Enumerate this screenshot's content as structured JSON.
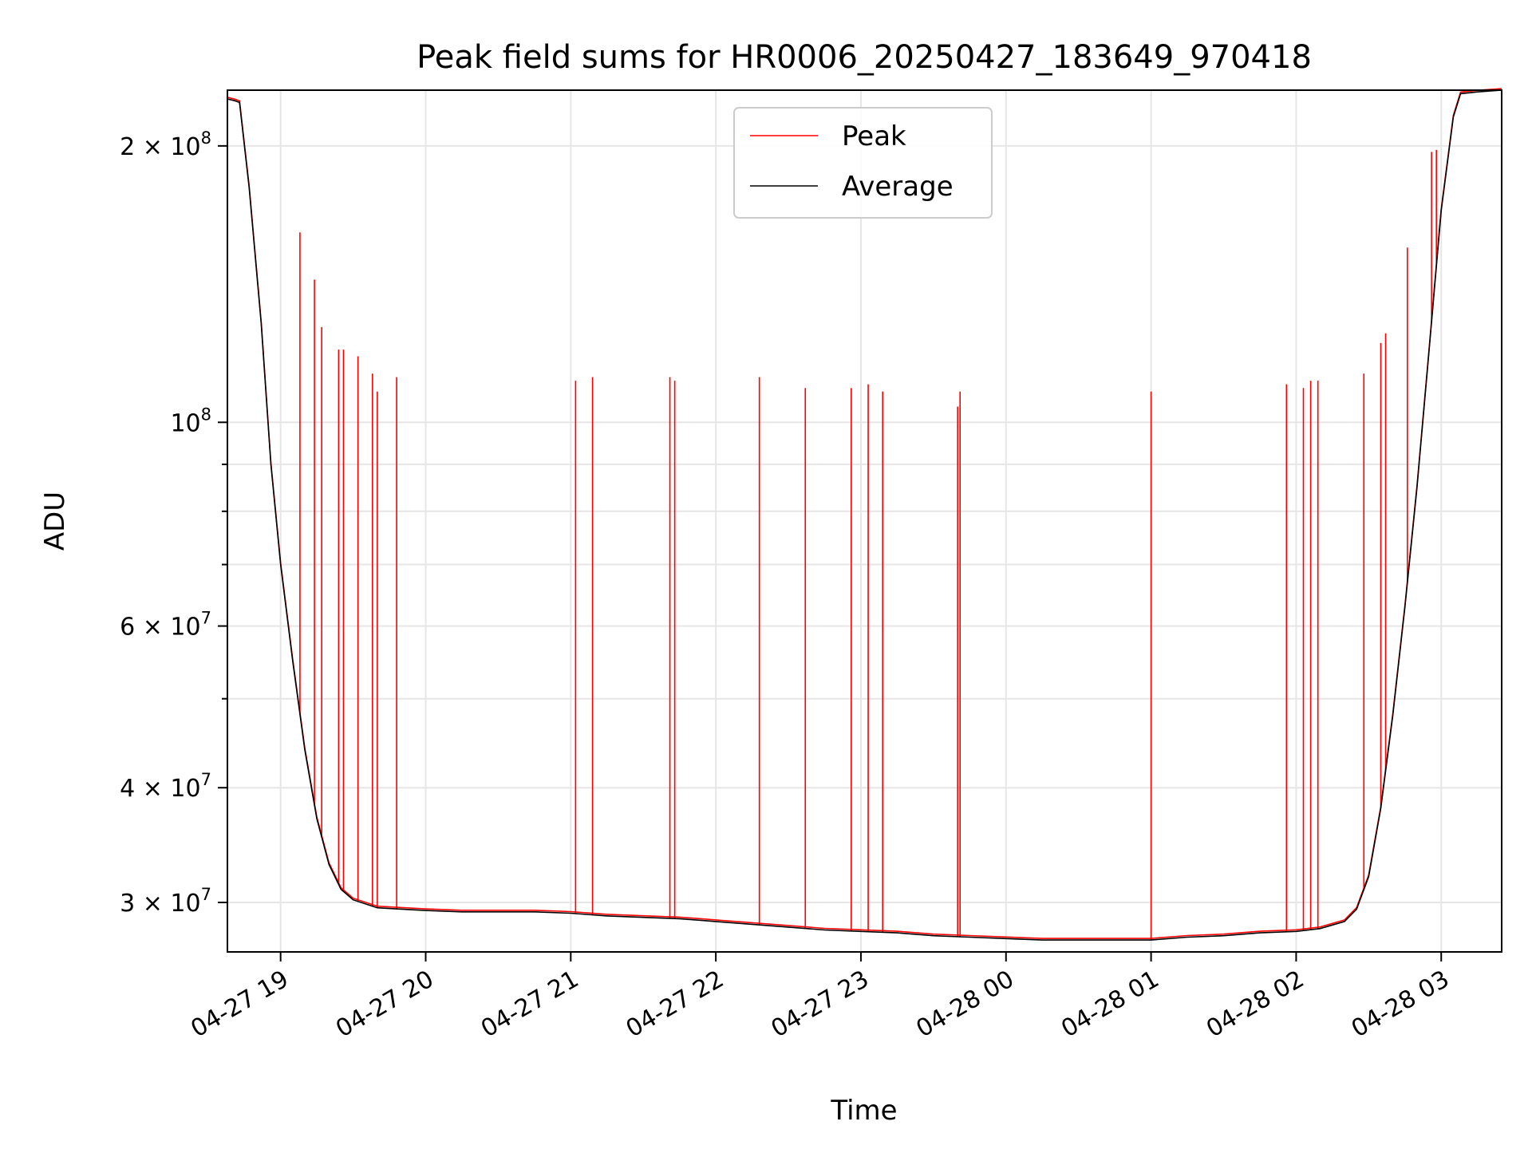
{
  "chart_data": {
    "type": "line",
    "title": "Peak field sums for HR0006_20250427_183649_970418",
    "xlabel": "Time",
    "ylabel": "ADU",
    "y_scale": "log",
    "ylim": [
      26500000,
      230000000
    ],
    "xlim": [
      "2025-04-27 18:38",
      "2025-04-28 03:25"
    ],
    "grid": true,
    "legend_position": "upper center",
    "x_ticks": [
      {
        "t": "2025-04-27 19:00",
        "label": "04-27 19"
      },
      {
        "t": "2025-04-27 20:00",
        "label": "04-27 20"
      },
      {
        "t": "2025-04-27 21:00",
        "label": "04-27 21"
      },
      {
        "t": "2025-04-27 22:00",
        "label": "04-27 22"
      },
      {
        "t": "2025-04-27 23:00",
        "label": "04-27 23"
      },
      {
        "t": "2025-04-28 00:00",
        "label": "04-28 00"
      },
      {
        "t": "2025-04-28 01:00",
        "label": "04-28 01"
      },
      {
        "t": "2025-04-28 02:00",
        "label": "04-28 02"
      },
      {
        "t": "2025-04-28 03:00",
        "label": "04-28 03"
      }
    ],
    "y_major_ticks": [
      {
        "v": 30000000,
        "mant": "3",
        "exp": "7"
      },
      {
        "v": 40000000,
        "mant": "4",
        "exp": "7"
      },
      {
        "v": 60000000,
        "mant": "6",
        "exp": "7"
      },
      {
        "v": 100000000,
        "mant": "",
        "exp": "8"
      },
      {
        "v": 200000000,
        "mant": "2",
        "exp": "8"
      }
    ],
    "y_minor_ticks": [
      50000000,
      70000000,
      80000000,
      90000000
    ],
    "series": [
      {
        "name": "Average",
        "color": "#000000",
        "points": [
          [
            "2025-04-27 18:38",
            225000000
          ],
          [
            "2025-04-27 18:41",
            224000000
          ],
          [
            "2025-04-27 18:43",
            223000000
          ],
          [
            "2025-04-27 18:47",
            180000000
          ],
          [
            "2025-04-27 18:52",
            128000000
          ],
          [
            "2025-04-27 18:56",
            90000000
          ],
          [
            "2025-04-27 19:00",
            70000000
          ],
          [
            "2025-04-27 19:05",
            55000000
          ],
          [
            "2025-04-27 19:10",
            44000000
          ],
          [
            "2025-04-27 19:15",
            37000000
          ],
          [
            "2025-04-27 19:20",
            33000000
          ],
          [
            "2025-04-27 19:25",
            31000000
          ],
          [
            "2025-04-27 19:30",
            30200000
          ],
          [
            "2025-04-27 19:40",
            29600000
          ],
          [
            "2025-04-27 19:50",
            29500000
          ],
          [
            "2025-04-27 20:00",
            29400000
          ],
          [
            "2025-04-27 20:15",
            29300000
          ],
          [
            "2025-04-27 20:30",
            29300000
          ],
          [
            "2025-04-27 20:45",
            29300000
          ],
          [
            "2025-04-27 21:00",
            29200000
          ],
          [
            "2025-04-27 21:15",
            29000000
          ],
          [
            "2025-04-27 21:30",
            28900000
          ],
          [
            "2025-04-27 21:45",
            28800000
          ],
          [
            "2025-04-27 22:00",
            28600000
          ],
          [
            "2025-04-27 22:15",
            28400000
          ],
          [
            "2025-04-27 22:30",
            28200000
          ],
          [
            "2025-04-27 22:45",
            28000000
          ],
          [
            "2025-04-27 23:00",
            27900000
          ],
          [
            "2025-04-27 23:15",
            27800000
          ],
          [
            "2025-04-27 23:30",
            27600000
          ],
          [
            "2025-04-27 23:45",
            27500000
          ],
          [
            "2025-04-28 00:00",
            27400000
          ],
          [
            "2025-04-28 00:15",
            27300000
          ],
          [
            "2025-04-28 00:30",
            27300000
          ],
          [
            "2025-04-28 00:45",
            27300000
          ],
          [
            "2025-04-28 01:00",
            27300000
          ],
          [
            "2025-04-28 01:15",
            27500000
          ],
          [
            "2025-04-28 01:30",
            27600000
          ],
          [
            "2025-04-28 01:45",
            27800000
          ],
          [
            "2025-04-28 02:00",
            27900000
          ],
          [
            "2025-04-28 02:10",
            28100000
          ],
          [
            "2025-04-28 02:20",
            28600000
          ],
          [
            "2025-04-28 02:25",
            29500000
          ],
          [
            "2025-04-28 02:30",
            32000000
          ],
          [
            "2025-04-28 02:35",
            38000000
          ],
          [
            "2025-04-28 02:40",
            48000000
          ],
          [
            "2025-04-28 02:45",
            63000000
          ],
          [
            "2025-04-28 02:50",
            85000000
          ],
          [
            "2025-04-28 02:55",
            120000000
          ],
          [
            "2025-04-28 03:00",
            170000000
          ],
          [
            "2025-04-28 03:05",
            215000000
          ],
          [
            "2025-04-28 03:08",
            228000000
          ],
          [
            "2025-04-28 03:15",
            229000000
          ],
          [
            "2025-04-28 03:25",
            230000000
          ]
        ]
      },
      {
        "name": "Peak",
        "color": "#ff0000",
        "spikes": [
          [
            "2025-04-27 19:08",
            161000000
          ],
          [
            "2025-04-27 19:14",
            143000000
          ],
          [
            "2025-04-27 19:17",
            127000000
          ],
          [
            "2025-04-27 19:24",
            120000000
          ],
          [
            "2025-04-27 19:26",
            120000000
          ],
          [
            "2025-04-27 19:32",
            118000000
          ],
          [
            "2025-04-27 19:38",
            113000000
          ],
          [
            "2025-04-27 19:40",
            108000000
          ],
          [
            "2025-04-27 19:48",
            112000000
          ],
          [
            "2025-04-27 21:02",
            111000000
          ],
          [
            "2025-04-27 21:09",
            112000000
          ],
          [
            "2025-04-27 21:41",
            112000000
          ],
          [
            "2025-04-27 21:43",
            111000000
          ],
          [
            "2025-04-27 22:18",
            112000000
          ],
          [
            "2025-04-27 22:37",
            109000000
          ],
          [
            "2025-04-27 22:56",
            109000000
          ],
          [
            "2025-04-27 23:03",
            110000000
          ],
          [
            "2025-04-27 23:09",
            108000000
          ],
          [
            "2025-04-27 23:40",
            104000000
          ],
          [
            "2025-04-27 23:41",
            108000000
          ],
          [
            "2025-04-28 01:00",
            108000000
          ],
          [
            "2025-04-28 01:56",
            110000000
          ],
          [
            "2025-04-28 02:03",
            109000000
          ],
          [
            "2025-04-28 02:06",
            111000000
          ],
          [
            "2025-04-28 02:09",
            111000000
          ],
          [
            "2025-04-28 02:28",
            113000000
          ],
          [
            "2025-04-28 02:35",
            122000000
          ],
          [
            "2025-04-28 02:37",
            125000000
          ],
          [
            "2025-04-28 02:46",
            155000000
          ],
          [
            "2025-04-28 02:56",
            197000000
          ],
          [
            "2025-04-28 02:58",
            198000000
          ]
        ]
      }
    ]
  }
}
